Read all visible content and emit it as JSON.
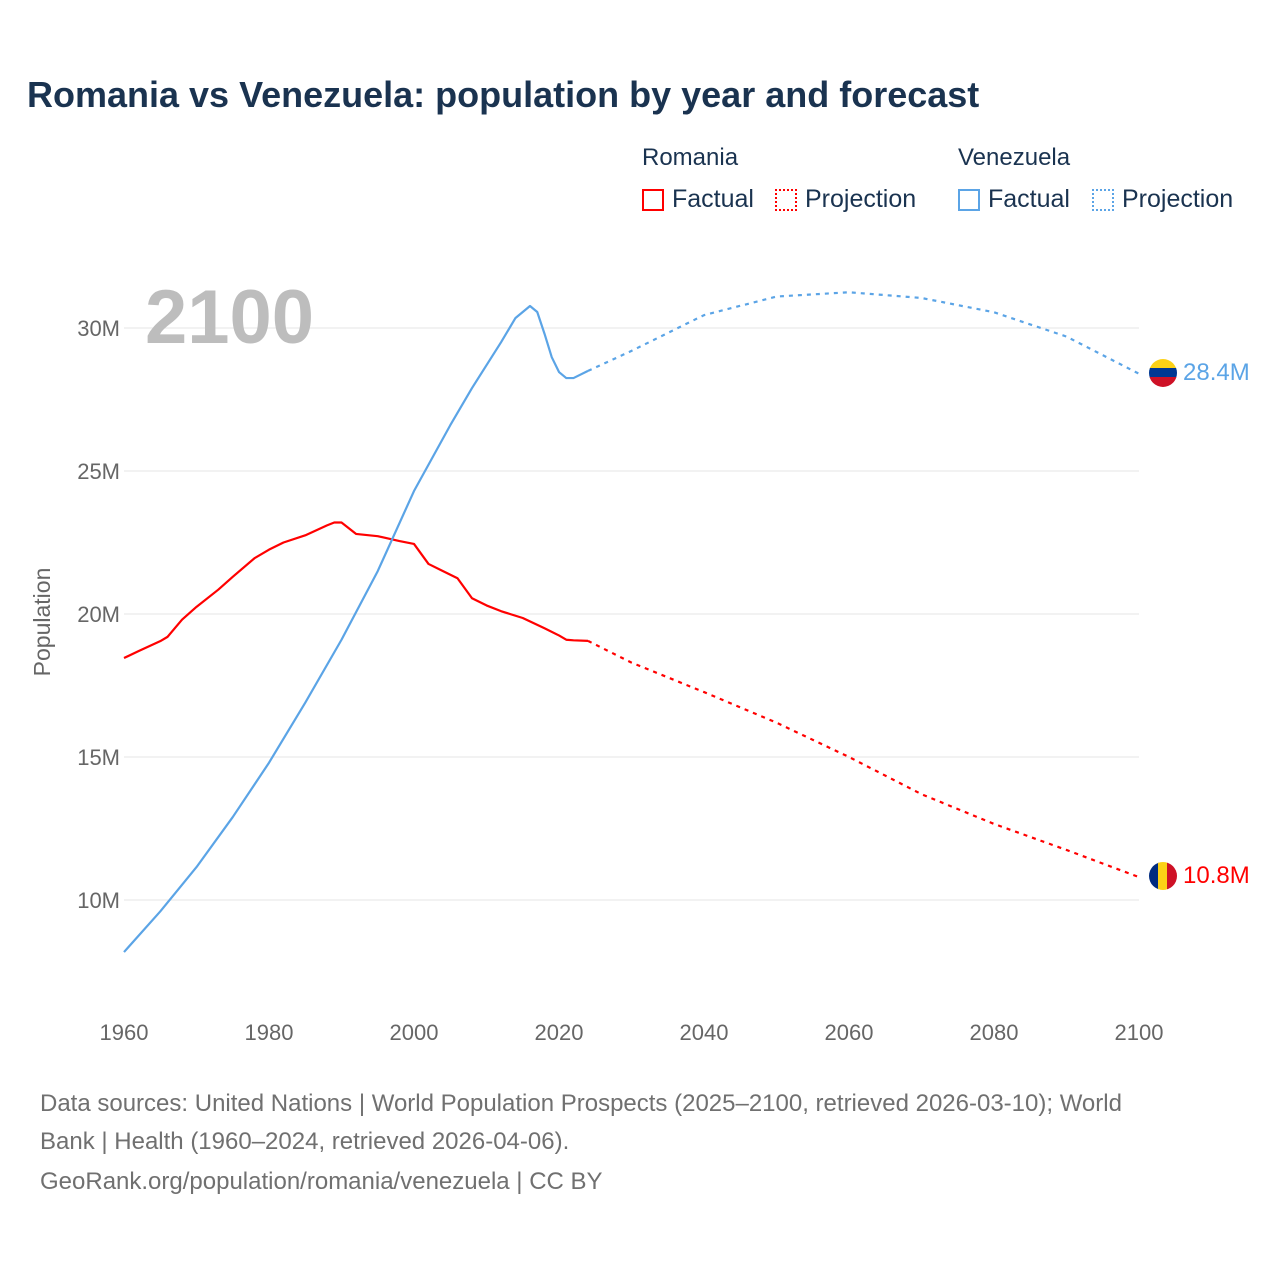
{
  "title": "Romania vs Venezuela: population by year and forecast",
  "legend": {
    "groups": [
      {
        "name": "Romania",
        "factual": "Factual",
        "projection": "Projection",
        "color": "#ff0000"
      },
      {
        "name": "Venezuela",
        "factual": "Factual",
        "projection": "Projection",
        "color": "#5ba4e6"
      }
    ]
  },
  "year_label": "2100",
  "footer": {
    "line1": "Data sources: United Nations | World Population Prospects (2025–2100, retrieved 2026-03-10); World",
    "line2": "Bank | Health (1960–2024, retrieved 2026-04-06).",
    "line3": "GeoRank.org/population/romania/venezuela | CC BY"
  },
  "chart_data": {
    "type": "line",
    "title": "Romania vs Venezuela: population by year and forecast",
    "xlabel": "",
    "ylabel": "Population",
    "xlim": [
      1960,
      2100
    ],
    "ylim": [
      8,
      32
    ],
    "xticks": [
      1960,
      1980,
      2000,
      2020,
      2040,
      2060,
      2080,
      2100
    ],
    "xtick_labels": [
      "1960",
      "1980",
      "2000",
      "2020",
      "2040",
      "2060",
      "2080",
      "2100"
    ],
    "yticks": [
      10,
      15,
      20,
      25,
      30
    ],
    "ytick_labels": [
      "10M",
      "15M",
      "20M",
      "25M",
      "30M"
    ],
    "grid": true,
    "legend_position": "top-right",
    "series": [
      {
        "name": "Romania",
        "color": "#ff0000",
        "end_label": "10.8M",
        "factual": {
          "x": [
            1960,
            1962,
            1965,
            1966,
            1968,
            1970,
            1973,
            1975,
            1978,
            1980,
            1982,
            1985,
            1988,
            1989,
            1990,
            1992,
            1995,
            1998,
            2000,
            2002,
            2004,
            2006,
            2008,
            2010,
            2012,
            2015,
            2018,
            2020,
            2021,
            2022,
            2024
          ],
          "y": [
            18.46,
            18.7,
            19.05,
            19.2,
            19.8,
            20.25,
            20.85,
            21.3,
            21.95,
            22.25,
            22.5,
            22.75,
            23.1,
            23.2,
            23.2,
            22.8,
            22.72,
            22.55,
            22.45,
            21.75,
            21.5,
            21.25,
            20.55,
            20.3,
            20.1,
            19.86,
            19.5,
            19.25,
            19.1,
            19.08,
            19.06
          ]
        },
        "projection": {
          "x": [
            2024,
            2030,
            2040,
            2050,
            2060,
            2070,
            2080,
            2090,
            2100
          ],
          "y": [
            19.06,
            18.3,
            17.27,
            16.2,
            15.0,
            13.7,
            12.66,
            11.75,
            10.8
          ]
        }
      },
      {
        "name": "Venezuela",
        "color": "#5ba4e6",
        "end_label": "28.4M",
        "factual": {
          "x": [
            1960,
            1965,
            1970,
            1975,
            1980,
            1985,
            1990,
            1995,
            2000,
            2005,
            2008,
            2010,
            2012,
            2014,
            2016,
            2017,
            2018,
            2019,
            2020,
            2021,
            2022,
            2024
          ],
          "y": [
            8.18,
            9.6,
            11.15,
            12.9,
            14.8,
            16.9,
            19.1,
            21.5,
            24.3,
            26.6,
            27.9,
            28.7,
            29.5,
            30.35,
            30.77,
            30.56,
            29.8,
            28.98,
            28.46,
            28.25,
            28.25,
            28.5
          ]
        },
        "projection": {
          "x": [
            2024,
            2030,
            2040,
            2050,
            2060,
            2070,
            2080,
            2090,
            2100
          ],
          "y": [
            28.5,
            29.2,
            30.45,
            31.1,
            31.25,
            31.05,
            30.55,
            29.7,
            28.4
          ]
        }
      }
    ]
  }
}
